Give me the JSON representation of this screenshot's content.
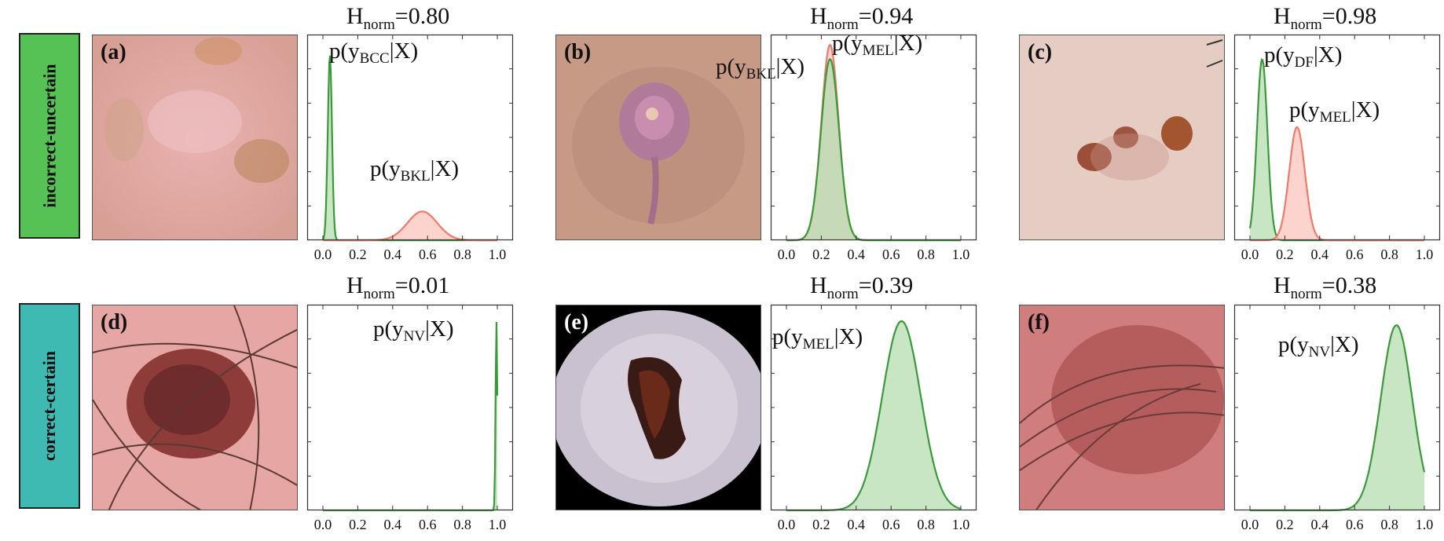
{
  "row_labels": [
    "incorrect-uncertain",
    "correct-certain"
  ],
  "panels": [
    {
      "letter": "(a)",
      "h_norm": "0.80"
    },
    {
      "letter": "(b)",
      "h_norm": "0.94"
    },
    {
      "letter": "(c)",
      "h_norm": "0.98"
    },
    {
      "letter": "(d)",
      "h_norm": "0.01"
    },
    {
      "letter": "(e)",
      "h_norm": "0.39"
    },
    {
      "letter": "(f)",
      "h_norm": "0.38"
    }
  ],
  "hnorm_symbol": "H",
  "hnorm_sub": "norm",
  "hnorm_eq": "=",
  "colors": {
    "green": "#3a9a3a",
    "green_fill": "#b5dcb0",
    "red": "#f07a6a",
    "red_fill": "#fbc6bc",
    "row1": "#56c155",
    "row2": "#3fbab2"
  },
  "chart_data": [
    {
      "type": "area",
      "panel": "a",
      "xlim": [
        0,
        1
      ],
      "xticks": [
        "0.0",
        "0.2",
        "0.4",
        "0.6",
        "0.8",
        "1.0"
      ],
      "series": [
        {
          "name": "p(y_BCC|X)",
          "label_main": "p(y",
          "label_sub": "BCC",
          "label_tail": "|X)",
          "color": "green",
          "mean": 0.04,
          "sd": 0.012,
          "peak": 0.9
        },
        {
          "name": "p(y_BKL|X)",
          "label_main": "p(y",
          "label_sub": "BKL",
          "label_tail": "|X)",
          "color": "red",
          "mean": 0.57,
          "sd": 0.085,
          "peak": 0.14
        }
      ]
    },
    {
      "type": "area",
      "panel": "b",
      "xlim": [
        0,
        1
      ],
      "xticks": [
        "0.0",
        "0.2",
        "0.4",
        "0.6",
        "0.8",
        "1.0"
      ],
      "series": [
        {
          "name": "p(y_MEL|X)",
          "label_main": "p(y",
          "label_sub": "MEL",
          "label_tail": "|X)",
          "color": "red",
          "mean": 0.25,
          "sd": 0.05,
          "peak": 0.95
        },
        {
          "name": "p(y_BKL|X)",
          "label_main": "p(y",
          "label_sub": "BKL",
          "label_tail": "|X)",
          "color": "green",
          "mean": 0.25,
          "sd": 0.052,
          "peak": 0.88
        }
      ]
    },
    {
      "type": "area",
      "panel": "c",
      "xlim": [
        0,
        1
      ],
      "xticks": [
        "0.0",
        "0.2",
        "0.4",
        "0.6",
        "0.8",
        "1.0"
      ],
      "series": [
        {
          "name": "p(y_DF|X)",
          "label_main": "p(y",
          "label_sub": "DF",
          "label_tail": "|X)",
          "color": "green",
          "mean": 0.07,
          "sd": 0.03,
          "peak": 0.88
        },
        {
          "name": "p(y_MEL|X)",
          "label_main": "p(y",
          "label_sub": "MEL",
          "label_tail": "|X)",
          "color": "red",
          "mean": 0.27,
          "sd": 0.045,
          "peak": 0.55
        }
      ]
    },
    {
      "type": "area",
      "panel": "d",
      "xlim": [
        0,
        1
      ],
      "xticks": [
        "0.0",
        "0.2",
        "0.4",
        "0.6",
        "0.8",
        "1.0"
      ],
      "series": [
        {
          "name": "p(y_NV|X)",
          "label_main": "p(y",
          "label_sub": "NV",
          "label_tail": "|X)",
          "color": "green",
          "mean": 0.995,
          "sd": 0.005,
          "peak": 0.92
        }
      ]
    },
    {
      "type": "area",
      "panel": "e",
      "xlim": [
        0,
        1
      ],
      "xticks": [
        "0.0",
        "0.2",
        "0.4",
        "0.6",
        "0.8",
        "1.0"
      ],
      "series": [
        {
          "name": "p(y_MEL|X)",
          "label_main": "p(y",
          "label_sub": "MEL",
          "label_tail": "|X)",
          "color": "green",
          "mean": 0.66,
          "sd": 0.11,
          "peak": 0.92
        }
      ]
    },
    {
      "type": "area",
      "panel": "f",
      "xlim": [
        0,
        1
      ],
      "xticks": [
        "0.0",
        "0.2",
        "0.4",
        "0.6",
        "0.8",
        "1.0"
      ],
      "series": [
        {
          "name": "p(y_NV|X)",
          "label_main": "p(y",
          "label_sub": "NV",
          "label_tail": "|X)",
          "color": "green",
          "mean": 0.84,
          "sd": 0.09,
          "peak": 0.9
        }
      ]
    }
  ]
}
